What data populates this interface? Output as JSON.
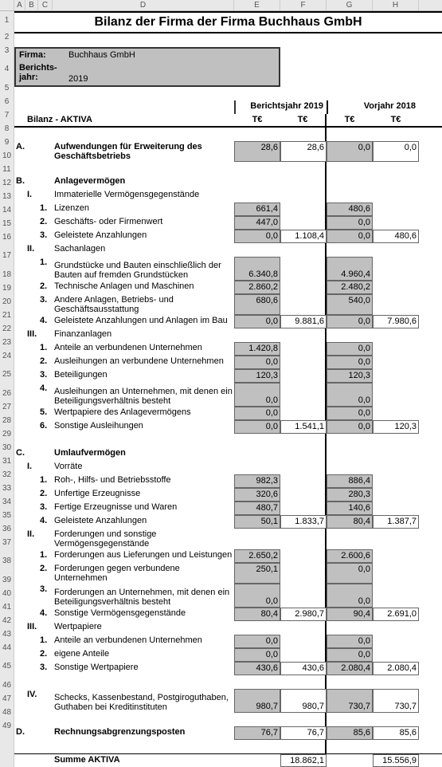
{
  "title": "Bilanz der Firma der Firma Buchhaus GmbH",
  "firma_label": "Firma:",
  "firma_value": "Buchhaus GmbH",
  "jahr_label": "Berichts-\njahr:",
  "jahr_value": "2019",
  "col_year1": "Berichtsjahr 2019",
  "col_year2": "Vorjahr 2018",
  "col_unit": "T€",
  "bilanz_title": "Bilanz - AKTIVA",
  "cols": [
    "A",
    "B",
    "C",
    "D",
    "E",
    "F",
    "G",
    "H"
  ],
  "rows": [
    {
      "n": 9,
      "a": "A.",
      "d": "Aufwendungen für Erweiterung des Geschäftsbetriebs",
      "bold": true,
      "e": "28,6",
      "f": "28,6",
      "g": "0,0",
      "h": "0,0",
      "eShade": true,
      "fOut": true,
      "gShade": true,
      "hOut": true
    },
    {
      "n": 10
    },
    {
      "n": 11,
      "a": "B.",
      "d": "Anlagevermögen",
      "bold": true
    },
    {
      "n": 12,
      "b": "I.",
      "d": "Immaterielle Vermögensgegenstände"
    },
    {
      "n": 13,
      "c": "1.",
      "d": "Lizenzen",
      "e": "661,4",
      "g": "480,6",
      "eShade": true,
      "gShade": true
    },
    {
      "n": 14,
      "c": "2.",
      "d": "Geschäfts- oder Firmenwert",
      "e": "447,0",
      "g": "0,0",
      "eShade": true,
      "gShade": true
    },
    {
      "n": 15,
      "c": "3.",
      "d": "Geleistete Anzahlungen",
      "e": "0,0",
      "f": "1.108,4",
      "g": "0,0",
      "h": "480,6",
      "eShade": true,
      "fOut": true,
      "gShade": true,
      "hOut": true
    },
    {
      "n": 16,
      "b": "II.",
      "d": "Sachanlagen"
    },
    {
      "n": 17,
      "c": "1.",
      "d": "Grundstücke und Bauten einschließlich der Bauten auf fremden Grundstücken",
      "tall": true,
      "e": "6.340,8",
      "g": "4.960,4",
      "eShade": true,
      "gShade": true
    },
    {
      "n": 18,
      "c": "2.",
      "d": "Technische Anlagen und Maschinen",
      "e": "2.860,2",
      "g": "2.480,2",
      "eShade": true,
      "gShade": true
    },
    {
      "n": 19,
      "c": "3.",
      "d": "Andere Anlagen, Betriebs- und Geschäftsausstattung",
      "e": "680,6",
      "g": "540,0",
      "eShade": true,
      "gShade": true
    },
    {
      "n": 20,
      "c": "4.",
      "d": "Geleistete Anzahlungen und Anlagen im Bau",
      "e": "0,0",
      "f": "9.881,6",
      "g": "0,0",
      "h": "7.980,6",
      "eShade": true,
      "fOut": true,
      "gShade": true,
      "hOut": true
    },
    {
      "n": 21,
      "b": "III.",
      "d": "Finanzanlagen"
    },
    {
      "n": 22,
      "c": "1.",
      "d": "Anteile an verbundenen Unternehmen",
      "e": "1.420,8",
      "g": "0,0",
      "eShade": true,
      "gShade": true
    },
    {
      "n": 23,
      "c": "2.",
      "d": "Ausleihungen an verbundene Unternehmen",
      "e": "0,0",
      "g": "0,0",
      "eShade": true,
      "gShade": true
    },
    {
      "n": 24,
      "c": "3.",
      "d": "Beteiligungen",
      "e": "120,3",
      "g": "120,3",
      "eShade": true,
      "gShade": true
    },
    {
      "n": 25,
      "c": "4.",
      "d": "Ausleihungen an Unternehmen, mit denen ein Beteiligungsverhältnis besteht",
      "tall": true,
      "e": "0,0",
      "g": "0,0",
      "eShade": true,
      "gShade": true
    },
    {
      "n": 26,
      "c": "5.",
      "d": "Wertpapiere des Anlagevermögens",
      "e": "0,0",
      "g": "0,0",
      "eShade": true,
      "gShade": true
    },
    {
      "n": 27,
      "c": "6.",
      "d": "Sonstige Ausleihungen",
      "e": "0,0",
      "f": "1.541,1",
      "g": "0,0",
      "h": "120,3",
      "eShade": true,
      "fOut": true,
      "gShade": true,
      "hOut": true
    },
    {
      "n": 28
    },
    {
      "n": 29,
      "a": "C.",
      "d": "Umlaufvermögen",
      "bold": true
    },
    {
      "n": 30,
      "b": "I.",
      "d": "Vorräte"
    },
    {
      "n": 31,
      "c": "1.",
      "d": "Roh-, Hilfs- und Betriebsstoffe",
      "e": "982,3",
      "g": "886,4",
      "eShade": true,
      "gShade": true
    },
    {
      "n": 32,
      "c": "2.",
      "d": "Unfertige Erzeugnisse",
      "e": "320,6",
      "g": "280,3",
      "eShade": true,
      "gShade": true
    },
    {
      "n": 33,
      "c": "3.",
      "d": "Fertige Erzeugnisse und Waren",
      "e": "480,7",
      "g": "140,6",
      "eShade": true,
      "gShade": true
    },
    {
      "n": 34,
      "c": "4.",
      "d": "Geleistete Anzahlungen",
      "e": "50,1",
      "f": "1.833,7",
      "g": "80,4",
      "h": "1.387,7",
      "eShade": true,
      "fOut": true,
      "gShade": true,
      "hOut": true
    },
    {
      "n": 35,
      "b": "II.",
      "d": "Forderungen und sonstige Vermögensgegenstände"
    },
    {
      "n": 36,
      "c": "1.",
      "d": "Forderungen aus Lieferungen und Leistungen",
      "e": "2.650,2",
      "g": "2.600,6",
      "eShade": true,
      "gShade": true
    },
    {
      "n": 37,
      "c": "2.",
      "d": "Forderungen gegen verbundene Unternehmen",
      "e": "250,1",
      "g": "0,0",
      "eShade": true,
      "gShade": true
    },
    {
      "n": 38,
      "c": "3.",
      "d": "Forderungen an Unternehmen, mit denen ein Beteiligungsverhältnis besteht",
      "tall": true,
      "e": "0,0",
      "g": "0,0",
      "eShade": true,
      "gShade": true
    },
    {
      "n": 39,
      "c": "4.",
      "d": "Sonstige Vermögensgegenstände",
      "e": "80,4",
      "f": "2.980,7",
      "g": "90,4",
      "h": "2.691,0",
      "eShade": true,
      "fOut": true,
      "gShade": true,
      "hOut": true
    },
    {
      "n": 40,
      "b": "III.",
      "d": "Wertpapiere"
    },
    {
      "n": 41,
      "c": "1.",
      "d": "Anteile an verbundenen Unternehmen",
      "e": "0,0",
      "g": "0,0",
      "eShade": true,
      "gShade": true
    },
    {
      "n": 42,
      "c": "2.",
      "d": "eigene Anteile",
      "e": "0,0",
      "g": "0,0",
      "eShade": true,
      "gShade": true
    },
    {
      "n": 43,
      "c": "3.",
      "d": "Sonstige Wertpapiere",
      "e": "430,6",
      "f": "430,6",
      "g": "2.080,4",
      "h": "2.080,4",
      "eShade": true,
      "fOut": true,
      "gShade": true,
      "hOut": true
    },
    {
      "n": 44
    },
    {
      "n": 45,
      "b": "IV.",
      "d": "Schecks, Kassenbestand, Postgiroguthaben, Guthaben bei Kreditinstituten",
      "tall": true,
      "e": "980,7",
      "f": "980,7",
      "g": "730,7",
      "h": "730,7",
      "eShade": true,
      "fOut": true,
      "gShade": true,
      "hOut": true
    },
    {
      "n": 46
    },
    {
      "n": 47,
      "a": "D.",
      "d": "Rechnungsabgrenzungsposten",
      "bold": true,
      "e": "76,7",
      "f": "76,7",
      "g": "85,6",
      "h": "85,6",
      "eShade": true,
      "fOut": true,
      "gShade": true,
      "hOut": true
    },
    {
      "n": 48
    },
    {
      "n": 49,
      "d": "Summe AKTIVA",
      "bold": true,
      "f": "18.862,1",
      "h": "15.556,9",
      "fOut": true,
      "hOut": true,
      "summe": true
    }
  ]
}
